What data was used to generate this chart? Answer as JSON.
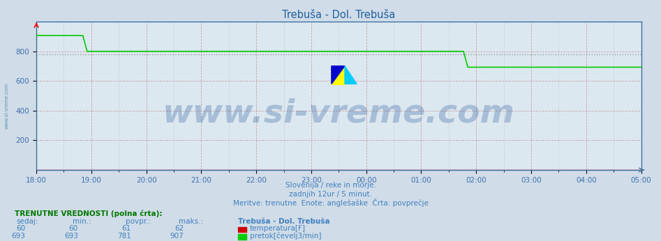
{
  "title": "Trebuša - Dol. Trebuša",
  "bg_color": "#d0dce8",
  "plot_bg_color": "#dce8f0",
  "grid_major_color": "#c09090",
  "grid_minor_color": "#b8a8c0",
  "avg_line_color": "#808080",
  "avg_line_value": 781,
  "temp_color": "#cc0000",
  "flow_color": "#00cc00",
  "axis_color": "#4070a0",
  "tick_color": "#4070b0",
  "title_color": "#2060a0",
  "subtitle_color": "#4080c0",
  "watermark_text": "www.si-vreme.com",
  "watermark_color": "#3060a0",
  "watermark_alpha": 0.3,
  "watermark_size": 34,
  "x_labels": [
    "18:00",
    "19:00",
    "20:00",
    "21:00",
    "22:00",
    "23:00",
    "00:00",
    "01:00",
    "02:00",
    "03:00",
    "04:00",
    "05:00"
  ],
  "y_min": 0,
  "y_max": 1000,
  "y_ticks": [
    200,
    400,
    600,
    800
  ],
  "subtitle1": "Slovenija / reke in morje.",
  "subtitle2": "zadnjih 12ur / 5 minut.",
  "subtitle3": "Meritve: trenutne  Enote: anglešaške  Črta: povprečje",
  "table_header": "TRENUTNE VREDNOSTI (polna črta):",
  "table_col1": "sedaj:",
  "table_col2": "min.:",
  "table_col3": "povpr.:",
  "table_col4": "maks.:",
  "table_station": "Trebuša - Dol. Trebuša",
  "temp_sedaj": 60,
  "temp_min": 60,
  "temp_povpr": 61,
  "temp_maks": 62,
  "flow_sedaj": 693,
  "flow_min": 693,
  "flow_povpr": 781,
  "flow_maks": 907,
  "temp_label": "temperatura[F]",
  "flow_label": "pretok[čevelj3/min]",
  "left_label_text": "www.si-vreme.com",
  "left_label_color": "#4080a0",
  "logo_yellow": "#ffff00",
  "logo_blue": "#0000cc",
  "logo_cyan": "#00ccff"
}
